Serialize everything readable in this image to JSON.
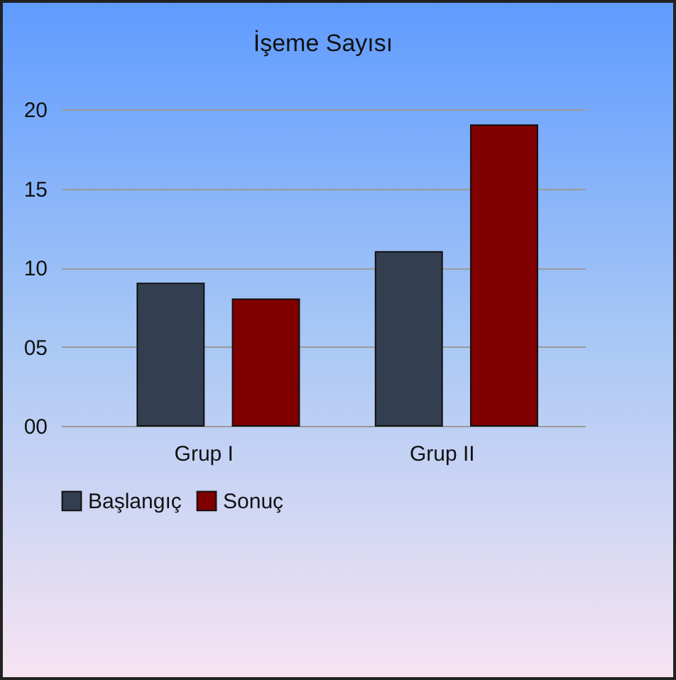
{
  "chart_data": {
    "type": "bar",
    "title": "İşeme Sayısı",
    "categories": [
      "Grup I",
      "Grup II"
    ],
    "series": [
      {
        "name": "Başlangıç",
        "color": "#333f50",
        "values": [
          9,
          11
        ]
      },
      {
        "name": "Sonuç",
        "color": "#800000",
        "values": [
          8,
          19
        ]
      }
    ],
    "ylim": [
      0,
      20
    ],
    "yticks": [
      {
        "value": 0,
        "label": "00"
      },
      {
        "value": 5,
        "label": "05"
      },
      {
        "value": 10,
        "label": "10"
      },
      {
        "value": 15,
        "label": "15"
      },
      {
        "value": 20,
        "label": "20"
      }
    ],
    "grid": "y",
    "legend": "bottom"
  }
}
